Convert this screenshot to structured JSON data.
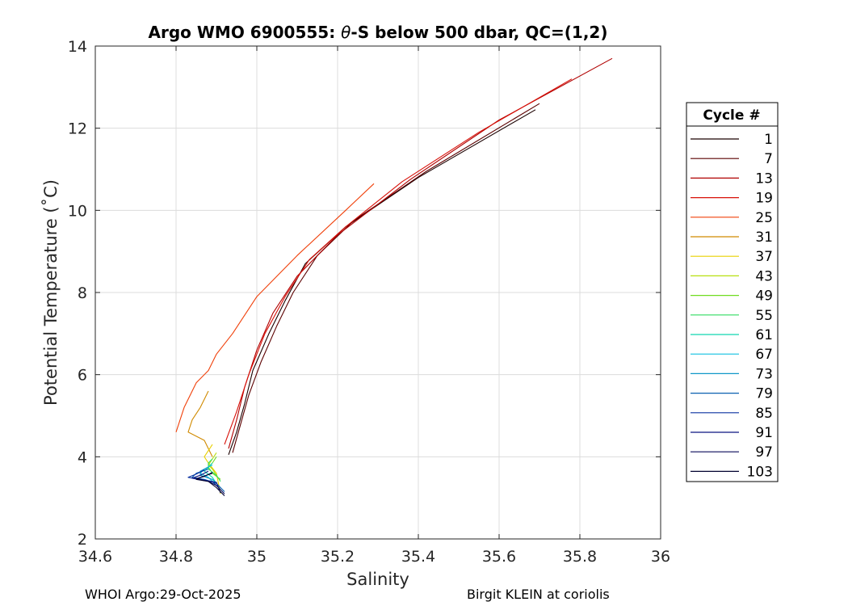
{
  "chart_data": {
    "type": "line",
    "title_prefix": "Argo WMO 6900555: ",
    "title_symbol": "θ",
    "title_suffix": "-S below 500 dbar,  QC=(1,2)",
    "xlabel": "Salinity",
    "ylabel": "Potential Temperature (˚C)",
    "xlim": [
      34.6,
      36
    ],
    "ylim": [
      2,
      14
    ],
    "xticks": [
      34.6,
      34.8,
      35,
      35.2,
      35.4,
      35.6,
      35.8,
      36
    ],
    "xtick_labels": [
      "34.6",
      "34.8",
      "35",
      "35.2",
      "35.4",
      "35.6",
      "35.8",
      "36"
    ],
    "yticks": [
      2,
      4,
      6,
      8,
      10,
      12,
      14
    ],
    "ytick_labels": [
      "2",
      "4",
      "6",
      "8",
      "10",
      "12",
      "14"
    ],
    "grid": true,
    "legend": {
      "title": "Cycle #",
      "placement": "outside-right",
      "entries": [
        "1",
        "7",
        "13",
        "19",
        "25",
        "31",
        "37",
        "43",
        "49",
        "55",
        "61",
        "67",
        "73",
        "79",
        "85",
        "91",
        "97",
        "103"
      ],
      "colors": [
        "#1a0000",
        "#5c0000",
        "#b00000",
        "#d81008",
        "#f0400a",
        "#d08a00",
        "#e8d000",
        "#b8e010",
        "#70dc20",
        "#30dc60",
        "#10d8b0",
        "#10c0e0",
        "#1098c8",
        "#0a60b0",
        "#0a30a0",
        "#0a1480",
        "#08085a",
        "#020230"
      ]
    },
    "series": [
      {
        "name": "1",
        "color": "#1a0000",
        "x": [
          35.69,
          35.4,
          35.22,
          35.12,
          35.07,
          35.03,
          34.99,
          34.97,
          34.95,
          34.93
        ],
        "y": [
          12.45,
          10.8,
          9.6,
          8.7,
          7.8,
          7.0,
          6.1,
          5.3,
          4.6,
          4.05
        ]
      },
      {
        "name": "7",
        "color": "#5c0000",
        "x": [
          35.7,
          35.42,
          35.24,
          35.15,
          35.09,
          35.05,
          35.01,
          34.98,
          34.96,
          34.94
        ],
        "y": [
          12.6,
          10.95,
          9.75,
          8.9,
          8.0,
          7.2,
          6.3,
          5.5,
          4.8,
          4.1
        ]
      },
      {
        "name": "13",
        "color": "#b00000",
        "x": [
          35.88,
          35.6,
          35.38,
          35.2,
          35.1,
          35.04,
          35.0,
          34.97,
          34.95,
          34.93
        ],
        "y": [
          13.7,
          12.2,
          10.75,
          9.4,
          8.4,
          7.5,
          6.6,
          5.7,
          4.9,
          4.2
        ]
      },
      {
        "name": "19",
        "color": "#d81008",
        "x": [
          35.78,
          35.55,
          35.36,
          35.22,
          35.13,
          35.07,
          35.02,
          34.98,
          34.95,
          34.92
        ],
        "y": [
          13.2,
          11.9,
          10.7,
          9.6,
          8.8,
          7.9,
          7.0,
          6.0,
          5.1,
          4.3
        ]
      },
      {
        "name": "25",
        "color": "#f0400a",
        "x": [
          35.29,
          35.22,
          35.1,
          35.0,
          34.94,
          34.9,
          34.88,
          34.85,
          34.82,
          34.8
        ],
        "y": [
          10.65,
          10.0,
          8.9,
          7.9,
          7.0,
          6.5,
          6.1,
          5.8,
          5.2,
          4.6
        ]
      },
      {
        "name": "31",
        "color": "#d08a00",
        "x": [
          34.88,
          34.86,
          34.84,
          34.83,
          34.85,
          34.87,
          34.88,
          34.89
        ],
        "y": [
          5.6,
          5.2,
          4.9,
          4.6,
          4.5,
          4.4,
          4.2,
          4.0
        ]
      },
      {
        "name": "37",
        "color": "#e8d000",
        "x": [
          34.89,
          34.88,
          34.87,
          34.88,
          34.9,
          34.91
        ],
        "y": [
          4.3,
          4.15,
          4.0,
          3.85,
          3.6,
          3.1
        ]
      },
      {
        "name": "43",
        "color": "#b8e010",
        "x": [
          34.9,
          34.89,
          34.88,
          34.89,
          34.9
        ],
        "y": [
          4.1,
          3.95,
          3.8,
          3.7,
          3.55
        ]
      },
      {
        "name": "49",
        "color": "#70dc20",
        "x": [
          34.9,
          34.89,
          34.88,
          34.89,
          34.91
        ],
        "y": [
          4.0,
          3.85,
          3.75,
          3.6,
          3.45
        ]
      },
      {
        "name": "55",
        "color": "#30dc60",
        "x": [
          34.89,
          34.88,
          34.88,
          34.9,
          34.91
        ],
        "y": [
          3.95,
          3.85,
          3.7,
          3.55,
          3.4
        ]
      },
      {
        "name": "61",
        "color": "#10d8b0",
        "x": [
          34.89,
          34.88,
          34.87,
          34.89,
          34.9
        ],
        "y": [
          3.85,
          3.75,
          3.65,
          3.5,
          3.35
        ]
      },
      {
        "name": "67",
        "color": "#10c0e0",
        "x": [
          34.89,
          34.87,
          34.86,
          34.88,
          34.9
        ],
        "y": [
          3.8,
          3.7,
          3.6,
          3.5,
          3.3
        ]
      },
      {
        "name": "73",
        "color": "#1098c8",
        "x": [
          34.88,
          34.86,
          34.86,
          34.89,
          34.91
        ],
        "y": [
          3.75,
          3.65,
          3.55,
          3.45,
          3.25
        ]
      },
      {
        "name": "79",
        "color": "#0a60b0",
        "x": [
          34.88,
          34.85,
          34.84,
          34.87,
          34.9,
          34.92
        ],
        "y": [
          3.7,
          3.6,
          3.5,
          3.45,
          3.35,
          3.15
        ]
      },
      {
        "name": "85",
        "color": "#0a30a0",
        "x": [
          34.87,
          34.85,
          34.83,
          34.86,
          34.89,
          34.91
        ],
        "y": [
          3.68,
          3.58,
          3.5,
          3.45,
          3.4,
          3.2
        ]
      },
      {
        "name": "91",
        "color": "#0a1480",
        "x": [
          34.88,
          34.86,
          34.84,
          34.87,
          34.9,
          34.91
        ],
        "y": [
          3.65,
          3.55,
          3.48,
          3.42,
          3.38,
          3.12
        ]
      },
      {
        "name": "97",
        "color": "#08085a",
        "x": [
          34.89,
          34.87,
          34.85,
          34.88,
          34.9,
          34.92
        ],
        "y": [
          3.62,
          3.52,
          3.47,
          3.4,
          3.3,
          3.1
        ]
      },
      {
        "name": "103",
        "color": "#020230",
        "x": [
          34.89,
          34.86,
          34.85,
          34.88,
          34.9,
          34.92
        ],
        "y": [
          3.6,
          3.5,
          3.45,
          3.4,
          3.25,
          3.05
        ]
      }
    ]
  },
  "footer": {
    "left": "WHOI Argo:29-Oct-2025",
    "right": "Birgit KLEIN at coriolis"
  }
}
